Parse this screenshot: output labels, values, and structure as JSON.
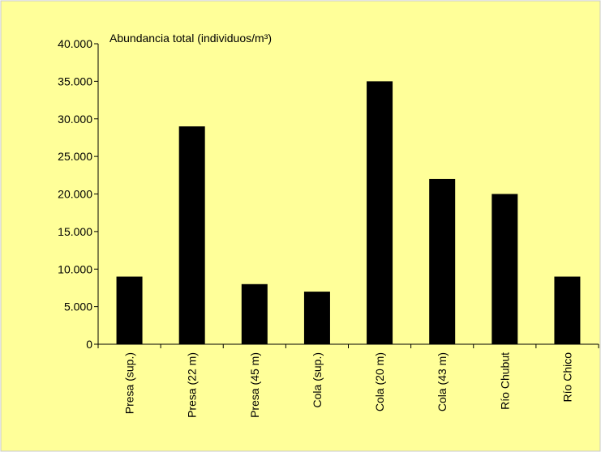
{
  "colors": {
    "background": "#ffff99",
    "border": "#c8c8c8",
    "bar": "#000000",
    "axis": "#000000"
  },
  "chart_data": {
    "type": "bar",
    "title": "",
    "ylabel": "Abundancia total (individuos/m³)",
    "xlabel": "",
    "categories": [
      "Presa (sup.)",
      "Presa (22 m)",
      "Presa (45 m)",
      "Cola (sup.)",
      "Cola (20 m)",
      "Cola (43 m)",
      "Río Chubut",
      "Río Chico"
    ],
    "values": [
      9000,
      29000,
      8000,
      7000,
      35000,
      22000,
      20000,
      9000
    ],
    "ylim": [
      0,
      40000
    ],
    "yticks": [
      0,
      5000,
      10000,
      15000,
      20000,
      25000,
      30000,
      35000,
      40000
    ],
    "ytick_labels": [
      "0",
      "5.000",
      "10.000",
      "15.000",
      "20.000",
      "25.000",
      "30.000",
      "35.000",
      "40.000"
    ],
    "grid": false,
    "legend": "none"
  }
}
